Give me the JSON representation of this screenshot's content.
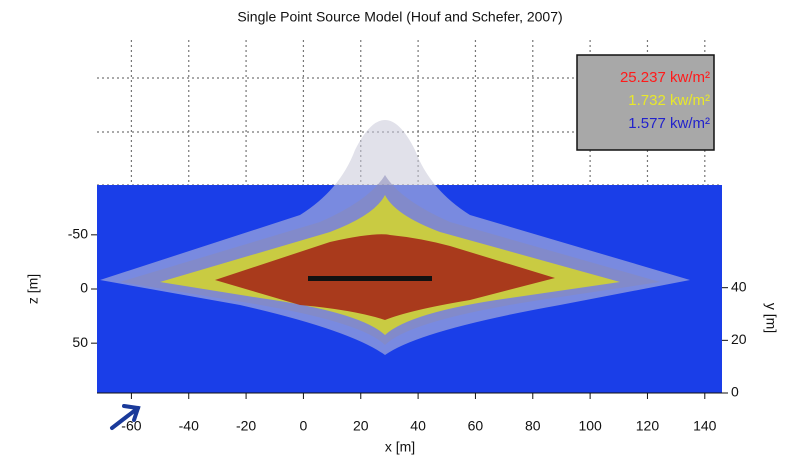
{
  "chart_data": {
    "type": "contour",
    "title": "Single Point Source Model (Houf and Schefer, 2007)",
    "x_label": "x [m]",
    "y_label": "z [m]",
    "y2_label": "y [m]",
    "xlim": [
      -72,
      146
    ],
    "xticks": [
      -60,
      -40,
      -20,
      0,
      20,
      40,
      60,
      80,
      100,
      120,
      140
    ],
    "ylim": [
      96,
      -96
    ],
    "yticks": [
      -50,
      0,
      50
    ],
    "y2lim": [
      0,
      79
    ],
    "y2ticks": [
      0,
      20,
      40
    ],
    "series": [
      {
        "name": "25.237 kw/m²",
        "color": "#ff1a1a"
      },
      {
        "name": "1.732 kw/m²",
        "color": "#e8e82a"
      },
      {
        "name": "1.577 kw/m²",
        "color": "#2222cc"
      }
    ]
  }
}
